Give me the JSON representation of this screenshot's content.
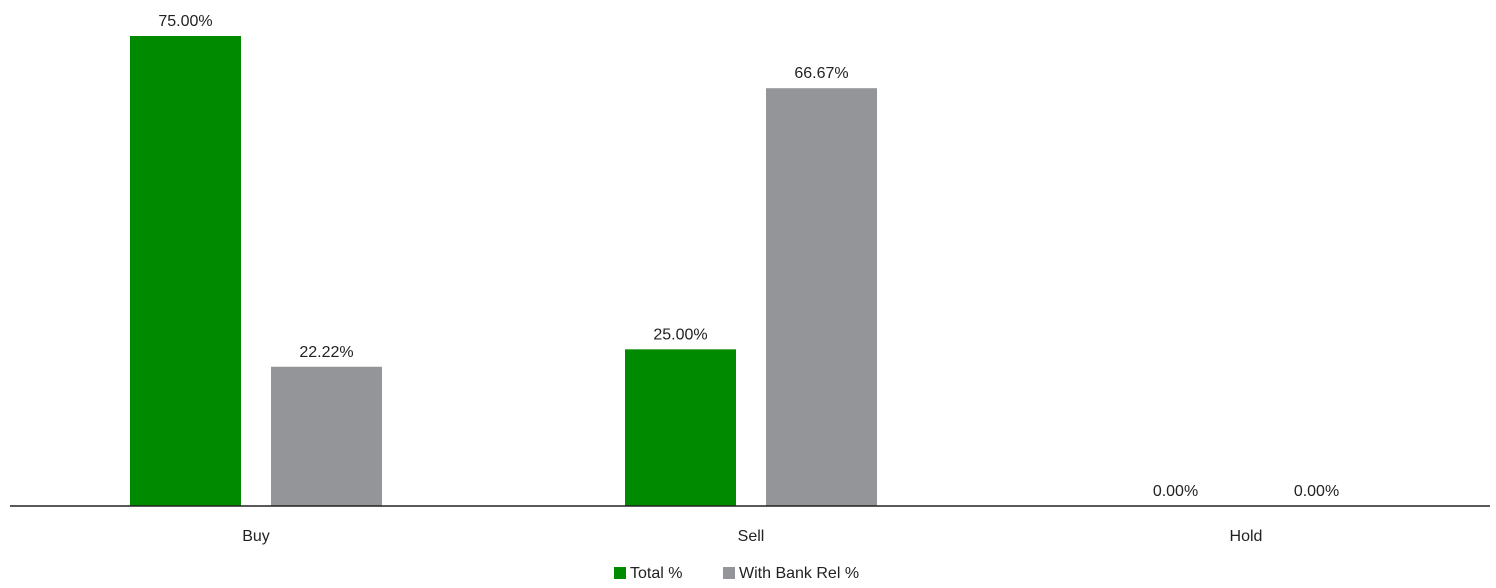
{
  "chart_data": {
    "type": "bar",
    "categories": [
      "Buy",
      "Sell",
      "Hold"
    ],
    "series": [
      {
        "name": "Total %",
        "values": [
          75.0,
          25.0,
          0.0
        ],
        "labels": [
          "75.00%",
          "25.00%",
          "0.00%"
        ],
        "color": "#008a00"
      },
      {
        "name": "With Bank Rel %",
        "values": [
          22.22,
          66.67,
          0.0
        ],
        "labels": [
          "22.22%",
          "66.67%",
          "0.00%"
        ],
        "color": "#939598"
      }
    ],
    "ylim": [
      0,
      75
    ],
    "grid": false,
    "legend_position": "bottom-center",
    "axis_color": "#222222"
  }
}
